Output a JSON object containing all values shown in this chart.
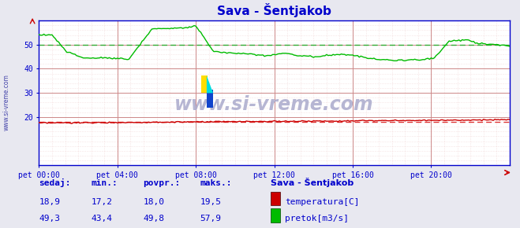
{
  "title": "Sava - Šentjakob",
  "bg_color": "#e8e8f0",
  "plot_bg_color": "#ffffff",
  "grid_color_major": "#cc8888",
  "grid_color_minor": "#eecccc",
  "xlim": [
    0,
    288
  ],
  "ylim": [
    0,
    60
  ],
  "yticks": [
    20,
    30,
    40,
    50
  ],
  "xtick_labels": [
    "pet 00:00",
    "pet 04:00",
    "pet 08:00",
    "pet 12:00",
    "pet 16:00",
    "pet 20:00"
  ],
  "xtick_positions": [
    0,
    48,
    96,
    144,
    192,
    240
  ],
  "avg_temp": 18.0,
  "avg_pretok": 49.8,
  "watermark": "www.si-vreme.com",
  "legend_title": "Sava - Šentjakob",
  "legend_items": [
    {
      "label": "temperatura[C]",
      "color": "#cc0000"
    },
    {
      "label": "pretok[m3/s]",
      "color": "#00bb00"
    }
  ],
  "stats": {
    "sedaj": {
      "temp": "18,9",
      "pretok": "49,3"
    },
    "min": {
      "temp": "17,2",
      "pretok": "43,4"
    },
    "povpr": {
      "temp": "18,0",
      "pretok": "49,8"
    },
    "maks": {
      "temp": "19,5",
      "pretok": "57,9"
    }
  },
  "temp_color": "#cc0000",
  "pretok_color": "#00bb00",
  "avg_line_color_temp": "#dd3333",
  "avg_line_color_pretok": "#33aa33",
  "axis_color": "#0000cc",
  "label_color": "#0000cc",
  "title_color": "#0000cc",
  "watermark_color": "#aaaacc",
  "sidebar_text_color": "#4444aa"
}
